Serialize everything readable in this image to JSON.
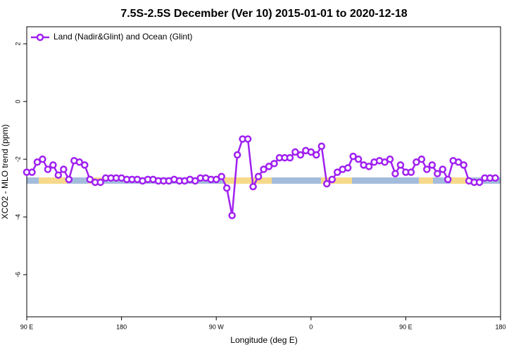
{
  "chart_data": {
    "type": "line",
    "title": "7.5S-2.5S December (Ver 10)   2015-01-01 to 2020-12-18",
    "xlabel": "Longitude (deg E)",
    "ylabel": "XCO2 - MLO trend (ppm)",
    "xlim": [
      90,
      540
    ],
    "ylim": [
      -7.46,
      2.59
    ],
    "xticks": [
      {
        "value": 90,
        "label": "90 E"
      },
      180,
      {
        "value": 270,
        "label": "90 W"
      },
      {
        "value": 360,
        "label": "0"
      },
      {
        "value": 450,
        "label": "90 E"
      },
      {
        "value": 540,
        "label": "180"
      }
    ],
    "yticks": [
      2,
      0,
      -2,
      -4,
      -6
    ],
    "legend": "upper left",
    "series": [
      {
        "name": "Land (Nadir&Glint) and Ocean (Glint)",
        "color": "#a020f0",
        "x": [
          90,
          95,
          100,
          105,
          110,
          115,
          120,
          125,
          130,
          135,
          140,
          145,
          150,
          155,
          160,
          165,
          170,
          175,
          180,
          185,
          190,
          195,
          200,
          205,
          210,
          215,
          220,
          225,
          230,
          235,
          240,
          245,
          250,
          255,
          260,
          265,
          270,
          275,
          280,
          285,
          290,
          295,
          300,
          305,
          310,
          315,
          320,
          325,
          330,
          335,
          340,
          345,
          350,
          355,
          360,
          365,
          370,
          375,
          380,
          385,
          390,
          395,
          400,
          405,
          410,
          415,
          420,
          425,
          430,
          435,
          440,
          445,
          450,
          455,
          460,
          465,
          470,
          475,
          480,
          485,
          490,
          495,
          500,
          505,
          510,
          515,
          520,
          525,
          530,
          535
        ],
        "values": [
          -2.45,
          -2.45,
          -2.1,
          -2.0,
          -2.35,
          -2.2,
          -2.55,
          -2.35,
          -2.7,
          -2.05,
          -2.1,
          -2.2,
          -2.7,
          -2.8,
          -2.8,
          -2.65,
          -2.65,
          -2.65,
          -2.65,
          -2.7,
          -2.7,
          -2.7,
          -2.75,
          -2.7,
          -2.7,
          -2.75,
          -2.75,
          -2.75,
          -2.7,
          -2.75,
          -2.75,
          -2.7,
          -2.75,
          -2.65,
          -2.65,
          -2.7,
          -2.7,
          -2.6,
          -3.0,
          -3.95,
          -1.85,
          -1.3,
          -1.3,
          -2.95,
          -2.6,
          -2.35,
          -2.25,
          -2.15,
          -1.95,
          -1.95,
          -1.95,
          -1.75,
          -1.85,
          -1.7,
          -1.75,
          -1.85,
          -1.55,
          -2.85,
          -2.7,
          -2.45,
          -2.35,
          -2.3,
          -1.9,
          -2.0,
          -2.2,
          -2.25,
          -2.1,
          -2.05,
          -2.1,
          -2.0,
          -2.5,
          -2.2,
          -2.45,
          -2.45,
          -2.1,
          -2.0,
          -2.35,
          -2.2,
          -2.5,
          -2.35,
          -2.7,
          -2.05,
          -2.1,
          -2.2,
          -2.75,
          -2.8,
          -2.8,
          -2.65,
          -2.65,
          -2.65
        ]
      }
    ]
  }
}
